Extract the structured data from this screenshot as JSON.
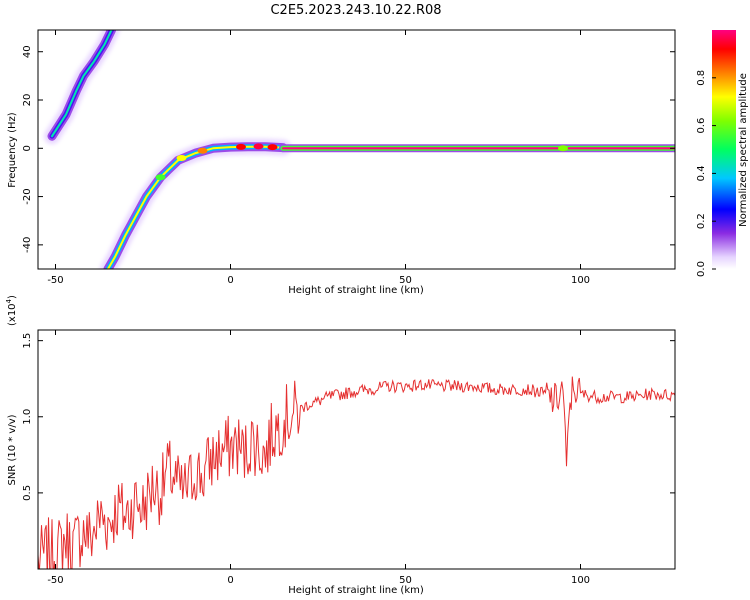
{
  "title": "C2E5.2023.243.10.22.R08",
  "colors": {
    "snr_line": "#e53030",
    "axis": "#000000"
  },
  "chart_data": [
    {
      "type": "heatmap",
      "xlabel": "Height of straight line (km)",
      "ylabel": "Frequency (Hz)",
      "xlim": [
        -55,
        127
      ],
      "ylim": [
        -50,
        49
      ],
      "x_ticks": [
        -50,
        0,
        50,
        100
      ],
      "y_ticks": [
        -40,
        -20,
        0,
        20,
        40
      ],
      "colorbar": {
        "label": "Normalized spectral amplitude",
        "range": [
          0,
          1
        ],
        "ticks": [
          0.0,
          0.2,
          0.4,
          0.6,
          0.8
        ],
        "colormap": [
          "#ffffff",
          "#e0c8ff",
          "#8a2be2",
          "#0000ff",
          "#00d0ff",
          "#00ff60",
          "#80ff00",
          "#ffff00",
          "#ff8000",
          "#ff0000",
          "#ff0080"
        ]
      },
      "features": [
        {
          "name": "upper-diagonal",
          "points": [
            [
              -51,
              5
            ],
            [
              -47,
              14
            ],
            [
              -44,
              24
            ],
            [
              -42,
              30
            ],
            [
              -39,
              36
            ],
            [
              -36,
              43
            ],
            [
              -34,
              49
            ]
          ],
          "peak": 0.45
        },
        {
          "name": "lower-curve",
          "points": [
            [
              -35,
              -50
            ],
            [
              -33,
              -45
            ],
            [
              -30,
              -36
            ],
            [
              -27,
              -28
            ],
            [
              -24,
              -20
            ],
            [
              -20,
              -12
            ],
            [
              -15,
              -5
            ],
            [
              -10,
              -2
            ],
            [
              -5,
              0
            ],
            [
              0,
              0.5
            ],
            [
              5,
              0.6
            ],
            [
              10,
              0.6
            ],
            [
              15,
              0.3
            ]
          ],
          "peak": 0.7
        },
        {
          "name": "zero-line",
          "points": [
            [
              15,
              0
            ],
            [
              127,
              0
            ]
          ],
          "peak": 1.0
        }
      ]
    },
    {
      "type": "line",
      "xlabel": "Height of straight line (km)",
      "ylabel": "SNR (10 * v/v)",
      "y_multiplier": "(x10^4)",
      "xlim": [
        -55,
        127
      ],
      "ylim": [
        0,
        1.57
      ],
      "x_ticks": [
        -50,
        0,
        50,
        100
      ],
      "y_ticks": [
        0.5,
        1.0,
        1.5
      ],
      "series": [
        {
          "x": [
            -55,
            -52,
            -50,
            -47,
            -45,
            -42,
            -40,
            -37,
            -35,
            -32,
            -30,
            -27,
            -25,
            -22,
            -20,
            -18,
            -16,
            -14,
            -12,
            -10,
            -8,
            -6,
            -4,
            -2,
            0,
            2,
            4,
            6,
            8,
            10,
            12,
            14,
            16,
            18,
            20,
            22,
            25,
            28,
            32,
            36,
            40,
            45,
            50,
            55,
            60,
            65,
            70,
            75,
            80,
            85,
            90,
            93,
            95,
            96,
            97,
            98,
            100,
            105,
            110,
            115,
            120,
            127
          ],
          "y": [
            0.05,
            0.12,
            0.1,
            0.2,
            0.15,
            0.25,
            0.2,
            0.35,
            0.3,
            0.4,
            0.35,
            0.45,
            0.4,
            0.55,
            0.5,
            0.65,
            0.6,
            0.5,
            0.55,
            0.65,
            0.6,
            0.7,
            0.75,
            0.78,
            0.8,
            0.82,
            0.75,
            0.85,
            0.8,
            0.75,
            0.9,
            0.95,
            1.0,
            1.02,
            1.05,
            1.08,
            1.1,
            1.13,
            1.15,
            1.17,
            1.18,
            1.2,
            1.2,
            1.21,
            1.2,
            1.2,
            1.2,
            1.18,
            1.18,
            1.18,
            1.15,
            1.1,
            1.2,
            0.65,
            1.1,
            1.2,
            1.15,
            1.13,
            1.13,
            1.13,
            1.15,
            1.14
          ]
        }
      ]
    }
  ]
}
